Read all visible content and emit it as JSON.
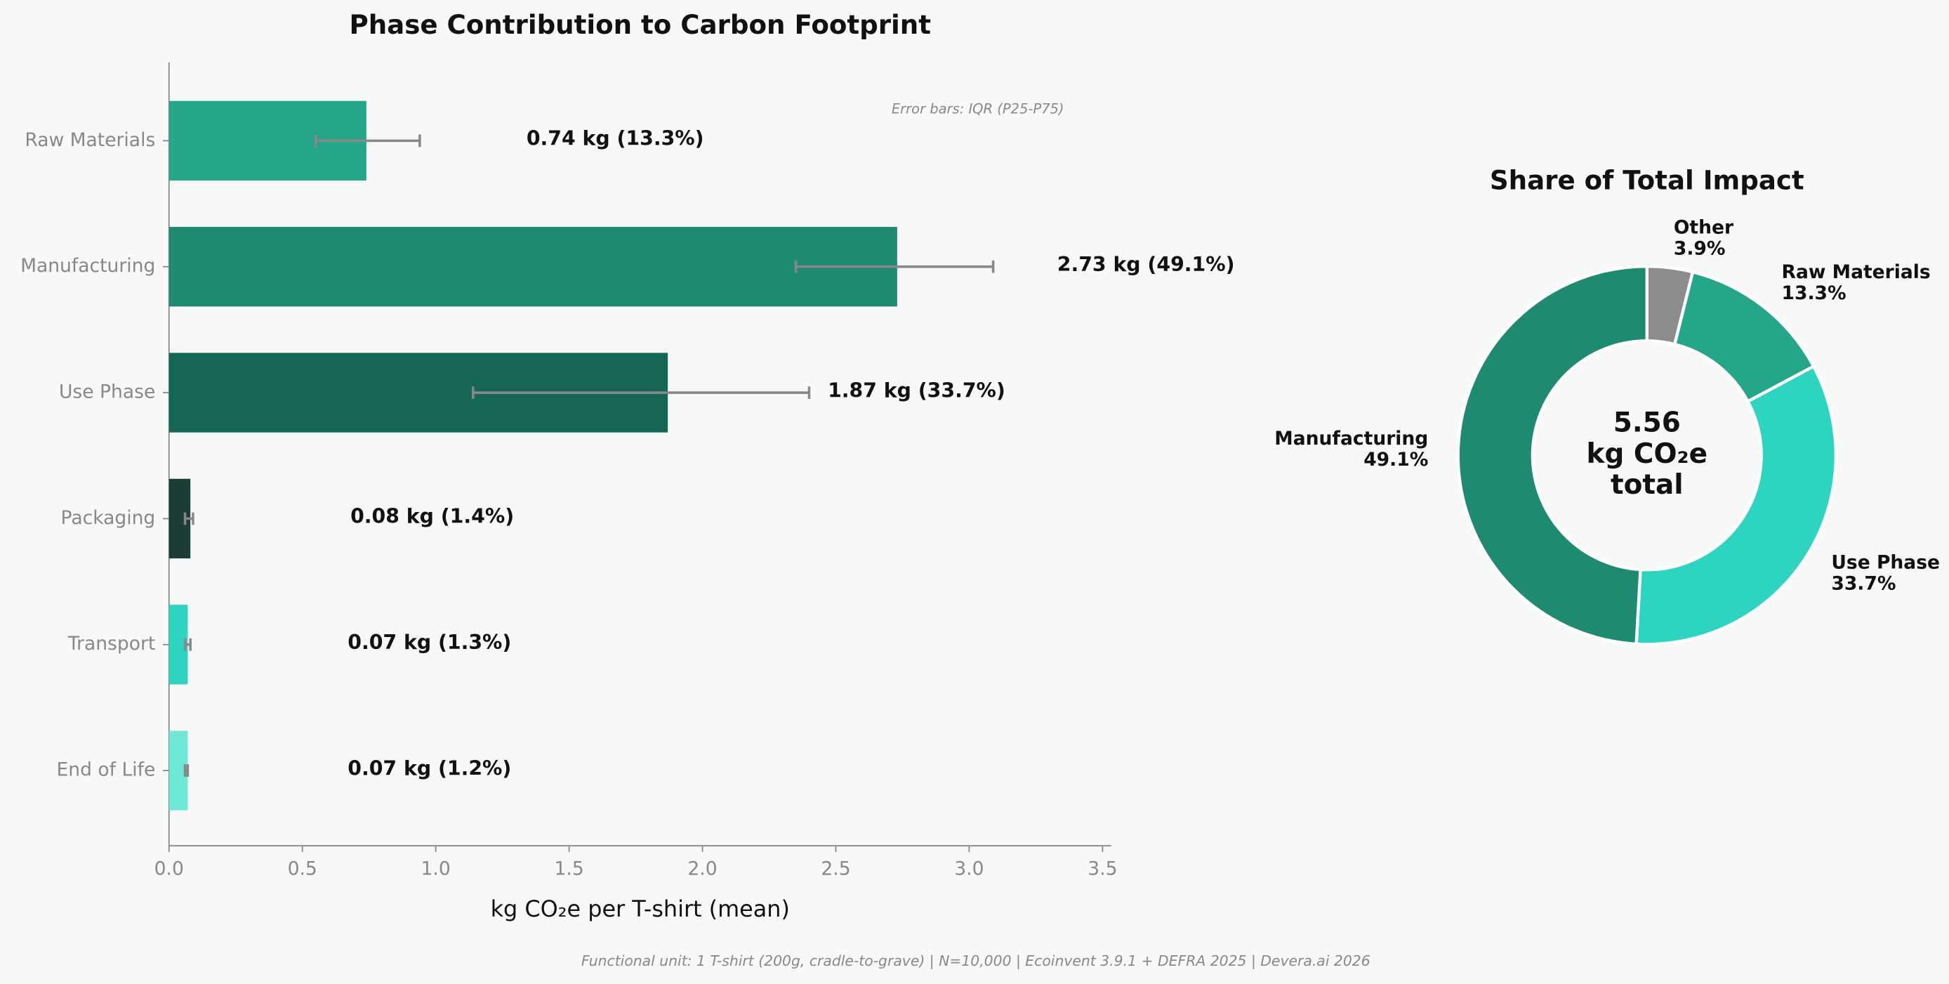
{
  "chart_data": [
    {
      "type": "bar",
      "orientation": "horizontal",
      "title": "Phase Contribution to Carbon Footprint",
      "xlabel": "kg CO₂e per T-shirt (mean)",
      "annotation": "Error bars: IQR (P25-P75)",
      "categories": [
        "Raw Materials",
        "Manufacturing",
        "Use Phase",
        "Packaging",
        "Transport",
        "End of Life"
      ],
      "values": [
        0.74,
        2.73,
        1.87,
        0.08,
        0.07,
        0.07
      ],
      "value_labels": [
        "0.74 kg  (13.3%)",
        "2.73 kg  (49.1%)",
        "1.87 kg  (33.7%)",
        "0.08 kg  (1.4%)",
        "0.07 kg  (1.3%)",
        "0.07 kg  (1.2%)"
      ],
      "error_low": [
        0.55,
        2.35,
        1.14,
        0.06,
        0.06,
        0.06
      ],
      "error_high": [
        0.94,
        3.09,
        2.4,
        0.09,
        0.08,
        0.07
      ],
      "colors": [
        "#26a688",
        "#1e8a70",
        "#166655",
        "#1b3d35",
        "#2dd4bf",
        "#6ee7d5"
      ],
      "error_color": "#888888",
      "xlim": [
        0,
        3.5
      ],
      "xticks": [
        {
          "value": 0,
          "label": "0.0"
        },
        0.5,
        {
          "value": 1,
          "label": "1.0"
        },
        1.5,
        {
          "value": 2,
          "label": "2.0"
        },
        2.5,
        {
          "value": 3,
          "label": "3.0"
        },
        3.5
      ]
    },
    {
      "type": "donut",
      "title": "Share of Total Impact",
      "categories": [
        "Other",
        "Raw Materials",
        "Use Phase",
        "Manufacturing"
      ],
      "values": [
        3.9,
        13.3,
        33.7,
        49.1
      ],
      "value_labels": [
        "3.9%",
        "13.3%",
        "33.7%",
        "49.1%"
      ],
      "colors": [
        "#8c8c8c",
        "#26a688",
        "#2dd4bf",
        "#1e8a70"
      ],
      "center_text": [
        "5.56",
        "kg CO₂e",
        "total"
      ]
    }
  ],
  "footer": "Functional unit: 1 T-shirt (200g, cradle-to-grave) | N=10,000 | Ecoinvent 3.9.1 + DEFRA 2025 | Devera.ai 2026"
}
